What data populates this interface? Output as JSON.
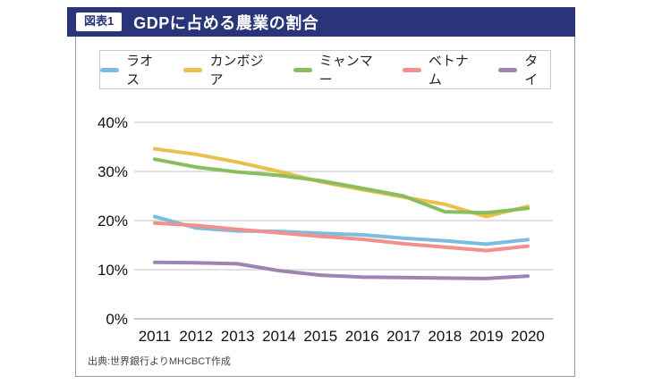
{
  "figure": {
    "tag_label": "図表1",
    "title": "GDPに占める農業の割合",
    "source": "出典:世界銀行よりMHCBCT作成"
  },
  "colors": {
    "header_bg": "#293578",
    "panel_border": "#9a9a9a",
    "grid": "#cfcfcf",
    "baseline": "#ababab",
    "axis_text": "#111111",
    "legend_border": "#c9c9c9"
  },
  "chart_data": {
    "type": "line",
    "title": "GDPに占める農業の割合",
    "xlabel": "",
    "ylabel": "",
    "x": [
      2011,
      2012,
      2013,
      2014,
      2015,
      2016,
      2017,
      2018,
      2019,
      2020
    ],
    "series": [
      {
        "name": "ラオス",
        "color": "#7cbcde",
        "values": [
          20.8,
          18.5,
          17.9,
          17.8,
          17.4,
          17.1,
          16.4,
          15.9,
          15.2,
          16.1
        ]
      },
      {
        "name": "カンボジア",
        "color": "#e9c04b",
        "values": [
          34.6,
          33.5,
          31.9,
          30.0,
          27.9,
          26.3,
          24.8,
          23.3,
          20.8,
          22.9
        ]
      },
      {
        "name": "ミャンマー",
        "color": "#8abd5f",
        "values": [
          32.5,
          30.9,
          29.9,
          29.2,
          28.1,
          26.6,
          25.0,
          21.8,
          21.6,
          22.5
        ]
      },
      {
        "name": "ベトナム",
        "color": "#f1908d",
        "values": [
          19.5,
          19.0,
          18.2,
          17.5,
          16.8,
          16.2,
          15.3,
          14.6,
          13.9,
          14.8
        ]
      },
      {
        "name": "タイ",
        "color": "#9c85b0",
        "values": [
          11.5,
          11.4,
          11.2,
          9.8,
          8.9,
          8.5,
          8.4,
          8.3,
          8.2,
          8.7
        ]
      }
    ],
    "ylim": [
      0,
      40
    ],
    "ytick_step": 10,
    "ytick_suffix": "%",
    "grid": true,
    "legend_position": "top"
  }
}
